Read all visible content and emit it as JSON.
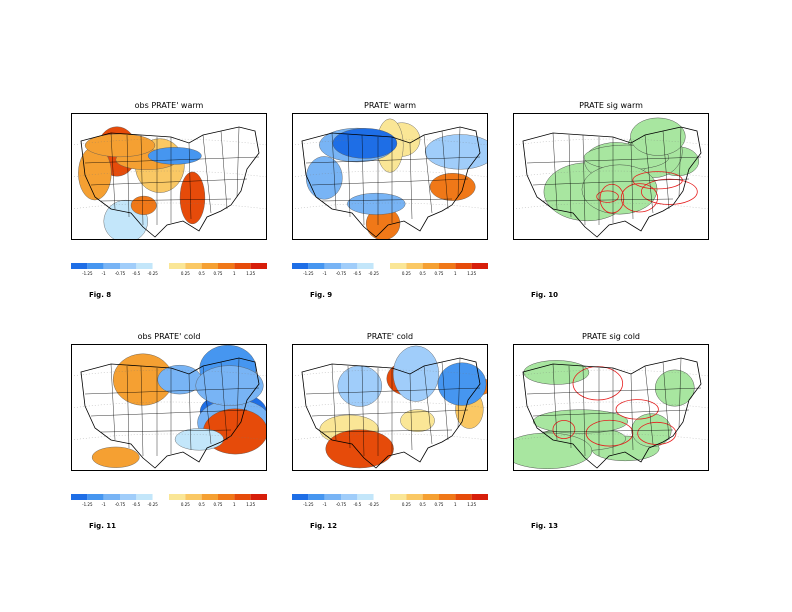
{
  "panels": [
    {
      "title": "obs PRATE' warm",
      "fig": "Fig. 8",
      "kind": "anom",
      "seed": 3,
      "colorbar": true
    },
    {
      "title": "PRATE' warm",
      "fig": "Fig. 9",
      "kind": "anom",
      "seed": 7,
      "colorbar": true
    },
    {
      "title": "PRATE sig warm",
      "fig": "Fig. 10",
      "kind": "sig",
      "seed": 11,
      "colorbar": false
    },
    {
      "title": "obs PRATE' cold",
      "fig": "Fig. 11",
      "kind": "anom",
      "seed": 5,
      "colorbar": true
    },
    {
      "title": "PRATE' cold",
      "fig": "Fig. 12",
      "kind": "anom",
      "seed": 9,
      "colorbar": true
    },
    {
      "title": "PRATE sig cold",
      "fig": "Fig. 13",
      "kind": "sig",
      "seed": 13,
      "colorbar": false
    }
  ],
  "colorbar": {
    "colors": [
      "#1e6ee6",
      "#4696f0",
      "#78b4f5",
      "#a0cdfa",
      "#c3e6fa",
      "#ffffff",
      "#fae696",
      "#fac864",
      "#f5a032",
      "#f07818",
      "#e64b0a",
      "#d71e0a"
    ],
    "labels": [
      "-1.25",
      "-1",
      "-0.75",
      "-0.5",
      "-0.25",
      "0.25",
      "0.5",
      "0.75",
      "1",
      "1.25"
    ]
  },
  "colors": {
    "land_line": "#000000",
    "sig_fill": "#a8e6a0",
    "sig_contour": "#e61e1e"
  }
}
